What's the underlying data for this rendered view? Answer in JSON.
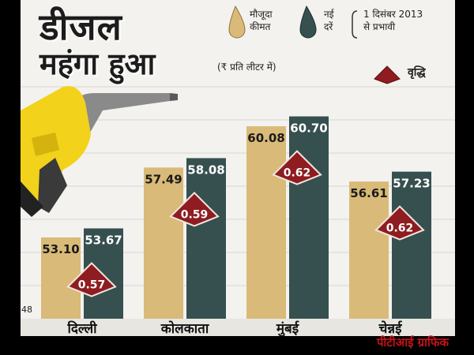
{
  "title": {
    "line1": "डीजल",
    "line2": "महंगा हुआ"
  },
  "legend": {
    "current_l1": "मौजूदा",
    "current_l2": "कीमत",
    "new_l1": "नई",
    "new_l2": "दरें",
    "date_l1": "1 दिसंबर 2013",
    "date_l2": "से प्रभावी",
    "increase": "वृद्धि"
  },
  "unit": "(₹ प्रति लीटर में)",
  "y_tick_bottom": "48",
  "credit": "पीटीआई ग्राफिक",
  "colors": {
    "current": "#d9ba78",
    "new": "#36504f",
    "increase": "#8e1c20",
    "background": "#f3f2ee"
  },
  "chart_data": {
    "type": "bar",
    "categories": [
      "दिल्ली",
      "कोलकाता",
      "मुंबई",
      "चेन्नई"
    ],
    "series": [
      {
        "name": "मौजूदा कीमत",
        "values": [
          53.1,
          57.49,
          60.08,
          56.61
        ],
        "labels": [
          "53.10",
          "57.49",
          "60.08",
          "56.61"
        ]
      },
      {
        "name": "नई दरें",
        "values": [
          53.67,
          58.08,
          60.7,
          57.23
        ],
        "labels": [
          "53.67",
          "58.08",
          "60.70",
          "57.23"
        ]
      }
    ],
    "increase": {
      "name": "वृद्धि",
      "values": [
        0.57,
        0.59,
        0.62,
        0.62
      ],
      "labels": [
        "0.57",
        "0.59",
        "0.62",
        "0.62"
      ]
    },
    "ylim": [
      48,
      62
    ],
    "grid": true
  }
}
